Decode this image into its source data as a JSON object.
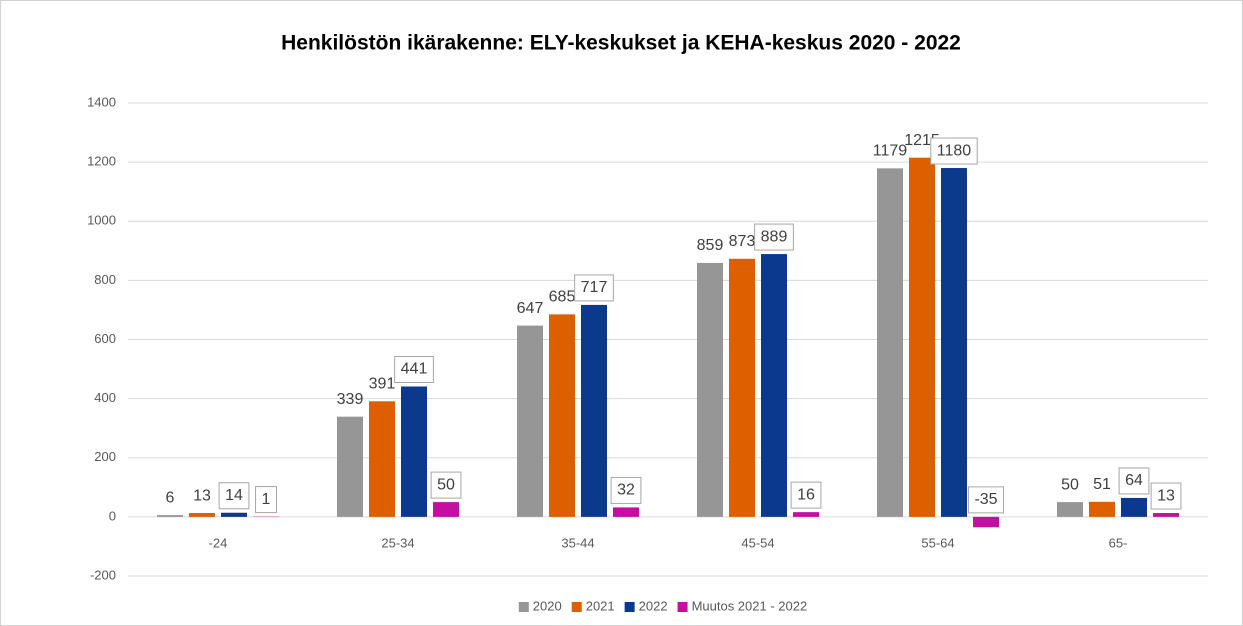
{
  "chart_data": {
    "type": "bar",
    "title": "Henkilöstön ikärakenne: ELY-keskukset ja KEHA-keskus 2020 - 2022",
    "categories": [
      "-24",
      "25-34",
      "35-44",
      "45-54",
      "55-64",
      "65-"
    ],
    "series": [
      {
        "name": "2020",
        "color": "#969696",
        "values": [
          6,
          339,
          647,
          859,
          1179,
          50
        ]
      },
      {
        "name": "2021",
        "color": "#dd5f00",
        "values": [
          13,
          391,
          685,
          873,
          1215,
          51
        ]
      },
      {
        "name": "2022",
        "color": "#0b3a8c",
        "values": [
          14,
          441,
          717,
          889,
          1180,
          64
        ]
      },
      {
        "name": "Muutos 2021 - 2022",
        "color": "#c40fa0",
        "values": [
          1,
          50,
          32,
          16,
          -35,
          13
        ]
      }
    ],
    "ylim": [
      -200,
      1400
    ],
    "yticks": [
      -200,
      0,
      200,
      400,
      600,
      800,
      1000,
      1200,
      1400
    ],
    "grid": true,
    "legend": "bottom"
  }
}
